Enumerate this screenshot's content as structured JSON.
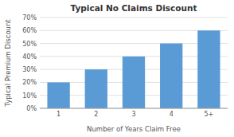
{
  "chart_data": {
    "type": "bar",
    "title": "Typical No Claims Discount",
    "xlabel": "Number of Years Claim Free",
    "ylabel": "Typical Premium Discount",
    "categories": [
      "1",
      "2",
      "3",
      "4",
      "5+"
    ],
    "values": [
      20,
      30,
      40,
      50,
      60
    ],
    "color": "#5B9BD5",
    "ylim": [
      0,
      70
    ],
    "yticks": [
      {
        "value": 0,
        "label": "0%"
      },
      {
        "value": 10,
        "label": "10%"
      },
      {
        "value": 20,
        "label": "20%"
      },
      {
        "value": 30,
        "label": "30%"
      },
      {
        "value": 40,
        "label": "40%"
      },
      {
        "value": 50,
        "label": "50%"
      },
      {
        "value": 60,
        "label": "60%"
      },
      {
        "value": 70,
        "label": "70%"
      }
    ],
    "grid": true
  }
}
